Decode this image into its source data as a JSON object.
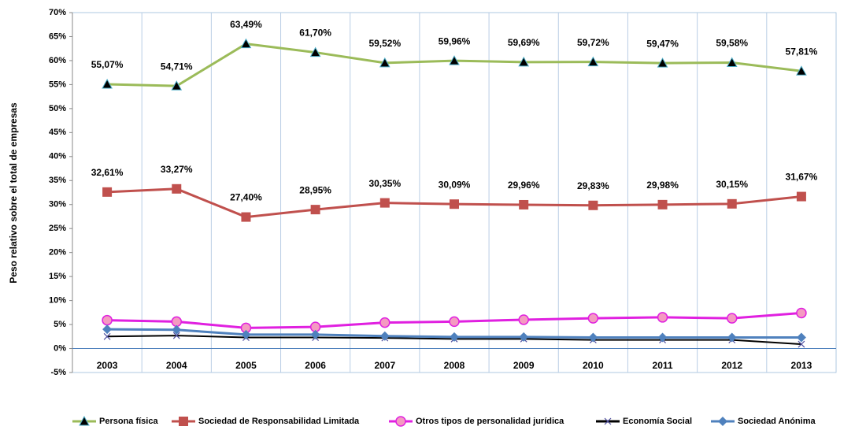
{
  "chart_data": {
    "type": "line",
    "y_label": "Peso relativo sobre el total de empresas",
    "categories": [
      "2003",
      "2004",
      "2005",
      "2006",
      "2007",
      "2008",
      "2009",
      "2010",
      "2011",
      "2012",
      "2013"
    ],
    "ylim": [
      -5,
      70
    ],
    "yticks": [
      {
        "value": -5,
        "label": "-5%"
      },
      {
        "value": 0,
        "label": "0%"
      },
      {
        "value": 5,
        "label": "5%"
      },
      {
        "value": 10,
        "label": "10%"
      },
      {
        "value": 15,
        "label": "15%"
      },
      {
        "value": 20,
        "label": "20%"
      },
      {
        "value": 25,
        "label": "25%"
      },
      {
        "value": 30,
        "label": "30%"
      },
      {
        "value": 35,
        "label": "35%"
      },
      {
        "value": 40,
        "label": "40%"
      },
      {
        "value": 45,
        "label": "45%"
      },
      {
        "value": 50,
        "label": "50%"
      },
      {
        "value": 55,
        "label": "55%"
      },
      {
        "value": 60,
        "label": "60%"
      },
      {
        "value": 65,
        "label": "65%"
      },
      {
        "value": 70,
        "label": "70%"
      }
    ],
    "series": [
      {
        "name": "Persona física",
        "color": "#9bbb59",
        "marker": "triangle",
        "values": [
          55.07,
          54.71,
          63.49,
          61.7,
          59.52,
          59.96,
          59.69,
          59.72,
          59.47,
          59.58,
          57.81
        ],
        "value_labels": [
          "55,07%",
          "54,71%",
          "63,49%",
          "61,70%",
          "59,52%",
          "59,96%",
          "59,69%",
          "59,72%",
          "59,47%",
          "59,58%",
          "57,81%"
        ]
      },
      {
        "name": "Sociedad de Responsabilidad Limitada",
        "color": "#c0504d",
        "marker": "square",
        "values": [
          32.61,
          33.27,
          27.4,
          28.95,
          30.35,
          30.09,
          29.96,
          29.83,
          29.98,
          30.15,
          31.67
        ],
        "value_labels": [
          "32,61%",
          "33,27%",
          "27,40%",
          "28,95%",
          "30,35%",
          "30,09%",
          "29,96%",
          "29,83%",
          "29,98%",
          "30,15%",
          "31,67%"
        ]
      },
      {
        "name": "Otros tipos de personalidad jurídica",
        "color": "#e020e0",
        "marker": "circle",
        "values": [
          5.9,
          5.6,
          4.3,
          4.5,
          5.4,
          5.6,
          6.0,
          6.3,
          6.5,
          6.3,
          7.4
        ]
      },
      {
        "name": "Economía Social",
        "color": "#000000",
        "marker": "x",
        "values": [
          2.5,
          2.7,
          2.3,
          2.3,
          2.2,
          2.0,
          2.0,
          1.8,
          1.8,
          1.8,
          0.9
        ]
      },
      {
        "name": "Sociedad Anónima",
        "color": "#4f81bd",
        "marker": "diamond",
        "values": [
          4.0,
          3.9,
          2.9,
          2.9,
          2.6,
          2.4,
          2.4,
          2.3,
          2.3,
          2.3,
          2.3
        ]
      }
    ]
  }
}
